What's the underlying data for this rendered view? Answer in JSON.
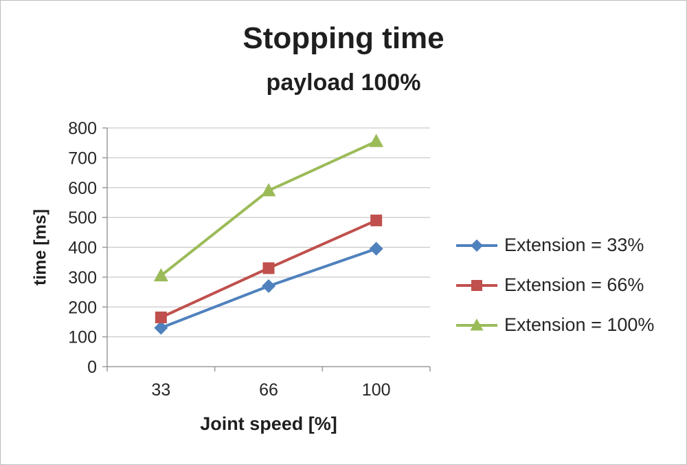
{
  "chart_data": {
    "type": "line",
    "title": "Stopping time",
    "subtitle": "payload 100%",
    "xlabel": "Joint speed [%]",
    "ylabel": "time [ms]",
    "categories": [
      "33",
      "66",
      "100"
    ],
    "ylim": [
      0,
      800
    ],
    "ytick_step": 100,
    "grid": true,
    "legend_position": "right",
    "series": [
      {
        "name": "Extension = 33%",
        "marker": "diamond",
        "color": "#4F81BD",
        "values": [
          130,
          270,
          395
        ]
      },
      {
        "name": "Extension = 66%",
        "marker": "square",
        "color": "#C0504D",
        "values": [
          165,
          330,
          490
        ]
      },
      {
        "name": "Extension = 100%",
        "marker": "triangle",
        "color": "#9BBB59",
        "values": [
          305,
          590,
          755
        ]
      }
    ],
    "colors": {
      "gridline": "#c9c9c9",
      "axis": "#9b9b9b",
      "text": "#262626"
    }
  }
}
